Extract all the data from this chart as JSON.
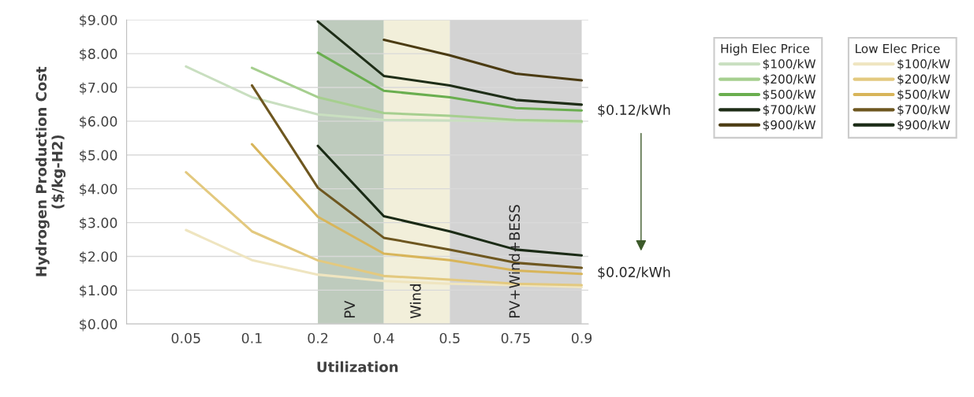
{
  "chart_data": {
    "type": "line",
    "xlabel": "Utilization",
    "ylabel": "Hydrogen Production Cost\n($/kg-H2)",
    "categories": [
      "0.05",
      "0.1",
      "0.2",
      "0.4",
      "0.5",
      "0.75",
      "0.9"
    ],
    "ylim": [
      0,
      9
    ],
    "yticks": [
      {
        "value": 0,
        "label": "$0.00"
      },
      {
        "value": 1,
        "label": "$1.00"
      },
      {
        "value": 2,
        "label": "$2.00"
      },
      {
        "value": 3,
        "label": "$3.00"
      },
      {
        "value": 4,
        "label": "$4.00"
      },
      {
        "value": 5,
        "label": "$5.00"
      },
      {
        "value": 6,
        "label": "$6.00"
      },
      {
        "value": 7,
        "label": "$7.00"
      },
      {
        "value": 8,
        "label": "$8.00"
      },
      {
        "value": 9,
        "label": "$9.00"
      }
    ],
    "grid": "y",
    "legend": "right",
    "legend_title": [
      "High Elec Price",
      "Low Elec Price"
    ],
    "marker": "none",
    "line_style": "solid",
    "series": [
      {
        "name": "$100/kW",
        "color": "#c9dfc0",
        "values": [
          7.62,
          6.71,
          6.2,
          6.04,
          6.02,
          6.0,
          5.97
        ]
      },
      {
        "name": "$200/kW",
        "color": "#a6cf8f",
        "values": [
          null,
          7.58,
          6.71,
          6.24,
          6.16,
          6.04,
          6.0
        ]
      },
      {
        "name": "$500/kW",
        "color": "#6aae4f",
        "values": [
          null,
          null,
          8.03,
          6.9,
          6.71,
          6.39,
          6.32
        ]
      },
      {
        "name": "$700/kW",
        "color": "#1e2d17",
        "values": [
          null,
          null,
          8.95,
          7.34,
          7.06,
          6.63,
          6.49
        ]
      },
      {
        "name": "$900/kW",
        "color": "#4b3b12",
        "values": [
          null,
          null,
          null,
          8.41,
          7.95,
          7.41,
          7.21
        ]
      },
      {
        "name": "$100/kW",
        "color": "#efe5c0",
        "values": [
          2.78,
          1.89,
          1.46,
          1.27,
          1.19,
          1.15,
          1.09
        ]
      },
      {
        "name": "$200/kW",
        "color": "#e3c97f",
        "values": [
          4.49,
          2.74,
          1.88,
          1.42,
          1.31,
          1.19,
          1.15
        ]
      },
      {
        "name": "$500/kW",
        "color": "#d8b55a",
        "values": [
          null,
          5.32,
          3.17,
          2.08,
          1.89,
          1.58,
          1.48
        ]
      },
      {
        "name": "$700/kW",
        "color": "#6e5720",
        "values": [
          null,
          7.06,
          4.03,
          2.55,
          2.2,
          1.81,
          1.66
        ]
      },
      {
        "name": "$900/kW",
        "color": "#1a2a15",
        "values": [
          null,
          null,
          5.27,
          3.19,
          2.74,
          2.2,
          2.03
        ]
      }
    ],
    "bands": [
      {
        "axis": "x",
        "from": "0.2",
        "to": "0.4",
        "label": "PV",
        "color": "#becbbd"
      },
      {
        "axis": "x",
        "from": "0.4",
        "to": "0.5",
        "label": "Wind",
        "color": "#f2efda"
      },
      {
        "axis": "x",
        "from": "0.5",
        "to": "0.9",
        "label": "PV+Wind+BESS",
        "color": "#d3d3d3"
      }
    ],
    "annotations": [
      {
        "text": "$0.12/kWh",
        "x": "0.9",
        "y": 6.3
      },
      {
        "text": "$0.02/kWh",
        "x": "0.9",
        "y": 1.5
      }
    ]
  }
}
